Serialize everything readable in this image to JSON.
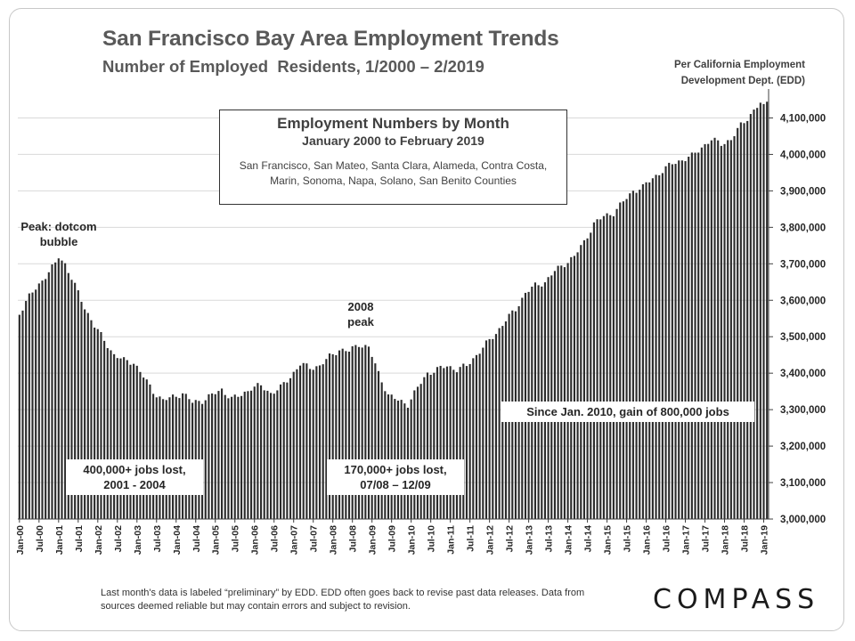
{
  "header": {
    "title": "San Francisco Bay Area Employment Trends",
    "subtitle": "Number of Employed  Residents, 1/2000 – 2/2019",
    "source_line1": "Per California Employment",
    "source_line2": "Development Dept. (EDD)"
  },
  "infobox": {
    "heading": "Employment Numbers by Month",
    "range": "January 2000 to February 2019",
    "counties": "San Francisco,  San Mateo, Santa Clara, Alameda, Contra Costa, Marin, Sonoma, Napa, Solano, San Benito Counties"
  },
  "annotations": {
    "peak_dotcom": "Peak: dotcom bubble",
    "peak_2008_a": "2008",
    "peak_2008_b": "peak",
    "loss_2001_a": "400,000+ jobs lost,",
    "loss_2001_b": "2001 - 2004",
    "loss_2008_a": "170,000+ jobs lost,",
    "loss_2008_b": "07/08 – 12/09",
    "gain_2010": "Since Jan. 2010, gain of 800,000 jobs"
  },
  "footnote": "Last month's data is labeled “preliminary” by EDD. EDD often goes back to revise past data releases. Data from sources deemed reliable but may contain errors and subject to revision.",
  "brand": {
    "logo_text": "COMPASS"
  },
  "colors": {
    "bar": "#2b2b2b",
    "grid": "#d9d9d9",
    "axis": "#404040",
    "text": "#404040"
  },
  "chart_data": {
    "type": "bar",
    "title": "San Francisco Bay Area Employment Trends",
    "xlabel": "",
    "ylabel": "",
    "ylim": [
      3000000,
      4150000
    ],
    "y_ticks": [
      3000000,
      3100000,
      3200000,
      3300000,
      3400000,
      3500000,
      3600000,
      3700000,
      3800000,
      3900000,
      4000000,
      4100000
    ],
    "y_tick_labels": [
      "3,000,000",
      "3,100,000",
      "3,200,000",
      "3,300,000",
      "3,400,000",
      "3,500,000",
      "3,600,000",
      "3,700,000",
      "3,800,000",
      "3,900,000",
      "4,000,000",
      "4,100,000"
    ],
    "grid": true,
    "start": "2000-01",
    "end": "2019-02",
    "x_tick_labels": [
      "Jan-00",
      "Jul-00",
      "Jan-01",
      "Jul-01",
      "Jan-02",
      "Jul-02",
      "Jan-03",
      "Jul-03",
      "Jan-04",
      "Jul-04",
      "Jan-05",
      "Jul-05",
      "Jan-06",
      "Jul-06",
      "Jan-07",
      "Jul-07",
      "Jan-08",
      "Jul-08",
      "Jan-09",
      "Jul-09",
      "Jan-10",
      "Jul-10",
      "Jan-11",
      "Jul-11",
      "Jan-12",
      "Jul-12",
      "Jan-13",
      "Jul-13",
      "Jan-14",
      "Jul-14",
      "Jan-15",
      "Jul-15",
      "Jan-16",
      "Jul-16",
      "Jan-17",
      "Jul-17",
      "Jan-18",
      "Jul-18",
      "Jan-19"
    ],
    "anchor_points": [
      [
        "2000-01",
        3565000
      ],
      [
        "2000-04",
        3610000
      ],
      [
        "2000-08",
        3655000
      ],
      [
        "2000-12",
        3700000
      ],
      [
        "2001-01",
        3720000
      ],
      [
        "2001-03",
        3700000
      ],
      [
        "2001-06",
        3640000
      ],
      [
        "2001-09",
        3580000
      ],
      [
        "2001-12",
        3530000
      ],
      [
        "2002-03",
        3490000
      ],
      [
        "2002-06",
        3450000
      ],
      [
        "2002-09",
        3435000
      ],
      [
        "2002-12",
        3430000
      ],
      [
        "2003-03",
        3390000
      ],
      [
        "2003-06",
        3350000
      ],
      [
        "2003-09",
        3325000
      ],
      [
        "2003-12",
        3335000
      ],
      [
        "2004-03",
        3345000
      ],
      [
        "2004-06",
        3320000
      ],
      [
        "2004-09",
        3325000
      ],
      [
        "2004-12",
        3340000
      ],
      [
        "2005-03",
        3355000
      ],
      [
        "2005-06",
        3330000
      ],
      [
        "2005-09",
        3340000
      ],
      [
        "2005-12",
        3360000
      ],
      [
        "2006-03",
        3365000
      ],
      [
        "2006-06",
        3345000
      ],
      [
        "2006-09",
        3360000
      ],
      [
        "2006-12",
        3390000
      ],
      [
        "2007-03",
        3425000
      ],
      [
        "2007-06",
        3415000
      ],
      [
        "2007-09",
        3420000
      ],
      [
        "2007-12",
        3445000
      ],
      [
        "2008-03",
        3465000
      ],
      [
        "2008-06",
        3460000
      ],
      [
        "2008-09",
        3480000
      ],
      [
        "2008-12",
        3470000
      ],
      [
        "2009-03",
        3400000
      ],
      [
        "2009-06",
        3340000
      ],
      [
        "2009-09",
        3325000
      ],
      [
        "2009-12",
        3315000
      ],
      [
        "2010-03",
        3360000
      ],
      [
        "2010-06",
        3400000
      ],
      [
        "2010-09",
        3410000
      ],
      [
        "2010-12",
        3420000
      ],
      [
        "2011-03",
        3410000
      ],
      [
        "2011-06",
        3420000
      ],
      [
        "2011-09",
        3450000
      ],
      [
        "2011-12",
        3480000
      ],
      [
        "2012-03",
        3510000
      ],
      [
        "2012-06",
        3545000
      ],
      [
        "2012-09",
        3575000
      ],
      [
        "2012-12",
        3620000
      ],
      [
        "2013-03",
        3640000
      ],
      [
        "2013-06",
        3650000
      ],
      [
        "2013-09",
        3680000
      ],
      [
        "2013-12",
        3700000
      ],
      [
        "2014-03",
        3720000
      ],
      [
        "2014-06",
        3760000
      ],
      [
        "2014-09",
        3810000
      ],
      [
        "2014-12",
        3830000
      ],
      [
        "2015-03",
        3840000
      ],
      [
        "2015-06",
        3870000
      ],
      [
        "2015-09",
        3900000
      ],
      [
        "2015-12",
        3910000
      ],
      [
        "2016-03",
        3935000
      ],
      [
        "2016-06",
        3955000
      ],
      [
        "2016-09",
        3975000
      ],
      [
        "2016-12",
        3985000
      ],
      [
        "2017-03",
        3995000
      ],
      [
        "2017-06",
        4020000
      ],
      [
        "2017-09",
        4040000
      ],
      [
        "2017-12",
        4030000
      ],
      [
        "2018-03",
        4040000
      ],
      [
        "2018-06",
        4080000
      ],
      [
        "2018-09",
        4110000
      ],
      [
        "2018-12",
        4140000
      ],
      [
        "2019-01",
        4130000
      ],
      [
        "2019-02",
        4145000
      ]
    ]
  }
}
